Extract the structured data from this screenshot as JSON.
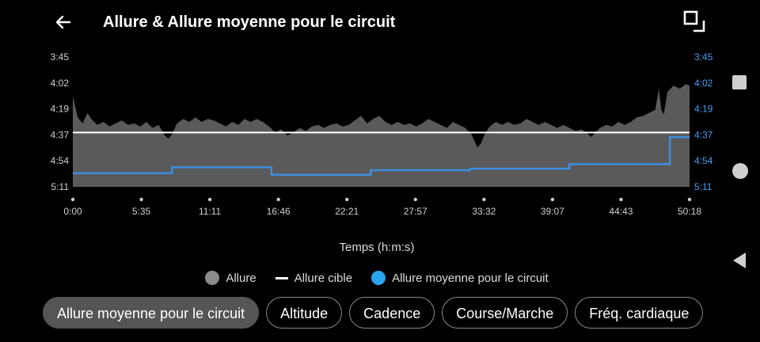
{
  "header": {
    "title": "Allure & Allure moyenne pour le circuit",
    "back_icon": "arrow-left-icon",
    "fullscreen_icon": "fullscreen-icon"
  },
  "colors": {
    "background": "#000000",
    "pace_area": "#5a5a5a",
    "target_line": "#ffffff",
    "lap_avg_line": "#3d8fe0",
    "right_axis": "#4a9df0",
    "chip_active": "#555555"
  },
  "chart_data": {
    "type": "area",
    "xlabel": "Temps (h:m:s)",
    "x_ticks": [
      "0:00",
      "5:35",
      "11:11",
      "16:46",
      "22:21",
      "27:57",
      "33:32",
      "39:07",
      "44:43",
      "50:18"
    ],
    "y_ticks_left": [
      "3:45",
      "4:02",
      "4:19",
      "4:37",
      "4:54",
      "5:11"
    ],
    "y_ticks_right": [
      "3:45",
      "4:02",
      "4:19",
      "4:37",
      "4:54",
      "5:11"
    ],
    "y_axis": "pace min/km, faster at top",
    "ylim_seconds": [
      225,
      311
    ],
    "xlim_minutes": [
      0,
      50.3
    ],
    "series": [
      {
        "name": "Allure",
        "style": "area",
        "points": [
          [
            0,
            251
          ],
          [
            0.4,
            265
          ],
          [
            0.8,
            269
          ],
          [
            1.2,
            262
          ],
          [
            1.5,
            266
          ],
          [
            2,
            270
          ],
          [
            2.5,
            268
          ],
          [
            3,
            271
          ],
          [
            3.5,
            269
          ],
          [
            4,
            267
          ],
          [
            4.5,
            270
          ],
          [
            5,
            269
          ],
          [
            5.5,
            271
          ],
          [
            6,
            268
          ],
          [
            6.5,
            272
          ],
          [
            7,
            270
          ],
          [
            7.5,
            277
          ],
          [
            7.8,
            279
          ],
          [
            8.1,
            276
          ],
          [
            8.5,
            269
          ],
          [
            9,
            266
          ],
          [
            9.5,
            268
          ],
          [
            10,
            265
          ],
          [
            10.5,
            268
          ],
          [
            11,
            266
          ],
          [
            11.5,
            267
          ],
          [
            12,
            269
          ],
          [
            12.5,
            271
          ],
          [
            13,
            268
          ],
          [
            13.5,
            270
          ],
          [
            14,
            266
          ],
          [
            14.5,
            268
          ],
          [
            15,
            266
          ],
          [
            15.5,
            268
          ],
          [
            16,
            271
          ],
          [
            16.5,
            275
          ],
          [
            17,
            273
          ],
          [
            17.5,
            277
          ],
          [
            18,
            275
          ],
          [
            18.5,
            272
          ],
          [
            19,
            274
          ],
          [
            19.5,
            271
          ],
          [
            20,
            270
          ],
          [
            20.5,
            272
          ],
          [
            21,
            270
          ],
          [
            21.5,
            269
          ],
          [
            22,
            271
          ],
          [
            22.5,
            270
          ],
          [
            23,
            267
          ],
          [
            23.5,
            264
          ],
          [
            24,
            269
          ],
          [
            24.5,
            266
          ],
          [
            25,
            264
          ],
          [
            25.5,
            268
          ],
          [
            26,
            270
          ],
          [
            26.5,
            268
          ],
          [
            27,
            270
          ],
          [
            27.5,
            269
          ],
          [
            28,
            271
          ],
          [
            28.5,
            269
          ],
          [
            29,
            266
          ],
          [
            29.5,
            268
          ],
          [
            30,
            270
          ],
          [
            30.5,
            272
          ],
          [
            31,
            268
          ],
          [
            31.5,
            270
          ],
          [
            32,
            272
          ],
          [
            32.5,
            276
          ],
          [
            33,
            285
          ],
          [
            33.3,
            282
          ],
          [
            33.6,
            276
          ],
          [
            34,
            271
          ],
          [
            34.5,
            268
          ],
          [
            35,
            270
          ],
          [
            35.5,
            268
          ],
          [
            36,
            270
          ],
          [
            36.5,
            269
          ],
          [
            37,
            266
          ],
          [
            37.5,
            268
          ],
          [
            38,
            270
          ],
          [
            38.5,
            268
          ],
          [
            39,
            270
          ],
          [
            39.5,
            272
          ],
          [
            40,
            270
          ],
          [
            40.5,
            272
          ],
          [
            41,
            274
          ],
          [
            41.5,
            273
          ],
          [
            42,
            276
          ],
          [
            42.3,
            278
          ],
          [
            42.6,
            275
          ],
          [
            43,
            272
          ],
          [
            43.5,
            270
          ],
          [
            44,
            271
          ],
          [
            44.5,
            268
          ],
          [
            45,
            270
          ],
          [
            45.5,
            268
          ],
          [
            46,
            265
          ],
          [
            46.5,
            264
          ],
          [
            47,
            262
          ],
          [
            47.5,
            260
          ],
          [
            47.8,
            246
          ],
          [
            48,
            260
          ],
          [
            48.2,
            263
          ],
          [
            48.5,
            248
          ],
          [
            49,
            244
          ],
          [
            49.5,
            246
          ],
          [
            50,
            243
          ],
          [
            50.3,
            244
          ]
        ]
      },
      {
        "name": "Allure cible",
        "style": "line",
        "y_seconds": 275
      },
      {
        "name": "Allure moyenne pour le circuit",
        "style": "step",
        "points": [
          [
            0,
            302
          ],
          [
            8.1,
            302
          ],
          [
            8.1,
            298
          ],
          [
            16.2,
            298
          ],
          [
            16.2,
            303
          ],
          [
            24.3,
            303
          ],
          [
            24.3,
            300
          ],
          [
            32.4,
            300
          ],
          [
            32.4,
            299
          ],
          [
            40.5,
            299
          ],
          [
            40.5,
            296
          ],
          [
            48.7,
            296
          ],
          [
            48.7,
            278
          ],
          [
            50.3,
            278
          ]
        ]
      }
    ]
  },
  "legend": [
    {
      "label": "Allure",
      "swatch": "dot",
      "color": "#8a8a8a"
    },
    {
      "label": "Allure cible",
      "swatch": "line",
      "color": "#ffffff"
    },
    {
      "label": "Allure moyenne pour le circuit",
      "swatch": "dot",
      "color": "#2aa4ef"
    }
  ],
  "chips": [
    {
      "label": "Allure moyenne pour le circuit",
      "active": true
    },
    {
      "label": "Altitude",
      "active": false
    },
    {
      "label": "Cadence",
      "active": false
    },
    {
      "label": "Course/Marche",
      "active": false
    },
    {
      "label": "Fréq. cardiaque",
      "active": false
    }
  ],
  "navbar": {
    "recents_icon": "square-icon",
    "home_icon": "circle-icon",
    "back_icon": "triangle-back-icon"
  }
}
